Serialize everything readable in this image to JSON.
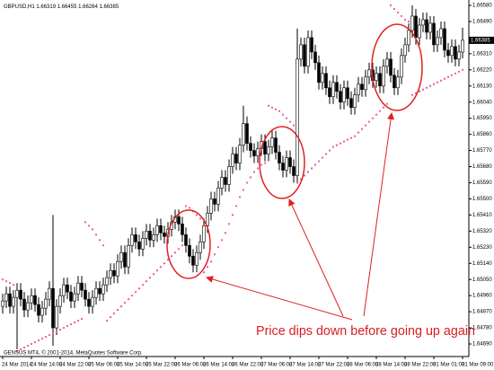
{
  "chart_data": {
    "type": "candlestick",
    "symbol": "GBPUSD,H1",
    "annotation": "Price dips down before going up again",
    "copyright": "GENSUS MT4, © 2001-2014, MetaQuotes Software Corp.",
    "up_color": "#ffffff",
    "down_color": "#000000",
    "sar_color": "#e8559a",
    "categories": [
      "24 Mar 2014",
      null,
      null,
      null,
      null,
      null,
      null,
      null,
      "24 Mar 14:00",
      null,
      null,
      null,
      null,
      null,
      null,
      null,
      "24 Mar 22:00",
      null,
      null,
      null,
      null,
      null,
      null,
      null,
      "25 Mar 06:00",
      null,
      null,
      null,
      null,
      null,
      null,
      null,
      "25 Mar 14:00",
      null,
      null,
      null,
      null,
      null,
      null,
      null,
      "25 Mar 22:00",
      null,
      null,
      null,
      null,
      null,
      null,
      null,
      "26 Mar 06:00",
      null,
      null,
      null,
      null,
      null,
      null,
      null,
      "26 Mar 14:00",
      null,
      null,
      null,
      null,
      null,
      null,
      null,
      "26 Mar 22:00",
      null,
      null,
      null,
      null,
      null,
      null,
      null,
      "27 Mar 06:00",
      null,
      null,
      null,
      null,
      null,
      null,
      null,
      "27 Mar 14:00",
      null,
      null,
      null,
      null,
      null,
      null,
      null,
      "27 Mar 22:00",
      null,
      null,
      null,
      null,
      null,
      null,
      null,
      "28 Mar 06:00",
      null,
      null,
      null,
      null,
      null,
      null,
      null,
      "28 Mar 14:00",
      null,
      null,
      null,
      null,
      null,
      null,
      null,
      "28 Mar 22:00",
      null,
      null,
      null,
      null,
      null,
      null,
      null,
      "31 Mar 01:00",
      null,
      null,
      null,
      null,
      null,
      null,
      null,
      "31 Mar 09:00"
    ],
    "open": [
      1.649,
      1.6493,
      1.6497,
      1.649,
      1.6495,
      1.6499,
      1.6494,
      1.6488,
      1.6492,
      1.6496,
      1.6491,
      1.6485,
      1.6489,
      1.6494,
      1.65,
      1.6478,
      1.649,
      1.6496,
      1.6502,
      1.6498,
      1.6493,
      1.6497,
      1.6503,
      1.6499,
      1.6494,
      1.649,
      1.6495,
      1.65,
      1.6497,
      1.6502,
      1.6506,
      1.651,
      1.6507,
      1.6515,
      1.652,
      1.6512,
      1.6524,
      1.653,
      1.6526,
      1.6522,
      1.6528,
      1.6532,
      1.6527,
      1.653,
      1.6535,
      1.6531,
      1.6529,
      1.6533,
      1.6537,
      1.654,
      1.6536,
      1.653,
      1.6524,
      1.6518,
      1.6513,
      1.652,
      1.6526,
      1.6535,
      1.6542,
      1.655,
      1.6547,
      1.6556,
      1.6562,
      1.6558,
      1.6568,
      1.6575,
      1.657,
      1.658,
      1.6592,
      1.6581,
      1.6577,
      1.6574,
      1.6578,
      1.6582,
      1.6575,
      1.6579,
      1.6584,
      1.6576,
      1.657,
      1.6566,
      1.6573,
      1.6568,
      1.6563,
      1.6628,
      1.6636,
      1.6624,
      1.664,
      1.6632,
      1.6626,
      1.6615,
      1.662,
      1.6612,
      1.6607,
      1.6615,
      1.661,
      1.6604,
      1.6612,
      1.6606,
      1.6601,
      1.6608,
      1.6614,
      1.6611,
      1.6618,
      1.6622,
      1.6616,
      1.662,
      1.6613,
      1.6624,
      1.6628,
      1.6619,
      1.6612,
      1.6618,
      1.663,
      1.6636,
      1.6644,
      1.6652,
      1.664,
      1.6647,
      1.665,
      1.6643,
      1.6648,
      1.6636,
      1.664,
      1.6645,
      1.6633,
      1.663,
      1.6635,
      1.6628,
      1.66319
    ],
    "high": [
      1.6497,
      1.6501,
      1.6501,
      1.6499,
      1.6503,
      1.6503,
      1.6498,
      1.6496,
      1.65,
      1.65,
      1.6495,
      1.6493,
      1.6498,
      1.6504,
      1.6541,
      1.6494,
      1.65,
      1.6506,
      1.6506,
      1.6502,
      1.6501,
      1.6507,
      1.6507,
      1.6503,
      1.6498,
      1.6499,
      1.6504,
      1.6504,
      1.6506,
      1.651,
      1.6514,
      1.6514,
      1.6519,
      1.6524,
      1.6524,
      1.6528,
      1.6534,
      1.6534,
      1.653,
      1.6532,
      1.6536,
      1.6536,
      1.6534,
      1.6539,
      1.6539,
      1.6535,
      1.6537,
      1.6541,
      1.6544,
      1.6544,
      1.654,
      1.6534,
      1.6528,
      1.6522,
      1.6524,
      1.653,
      1.6539,
      1.6546,
      1.6554,
      1.6554,
      1.656,
      1.6566,
      1.6566,
      1.6572,
      1.6579,
      1.6579,
      1.6584,
      1.6602,
      1.6596,
      1.6585,
      1.6581,
      1.6582,
      1.6586,
      1.6586,
      1.6583,
      1.6588,
      1.6588,
      1.658,
      1.6574,
      1.6577,
      1.6577,
      1.6572,
      1.6645,
      1.664,
      1.664,
      1.6644,
      1.6644,
      1.6636,
      1.663,
      1.6624,
      1.6624,
      1.6616,
      1.6619,
      1.6619,
      1.6614,
      1.6616,
      1.6616,
      1.661,
      1.6612,
      1.6618,
      1.6618,
      1.6622,
      1.6626,
      1.6626,
      1.6624,
      1.6624,
      1.6628,
      1.6632,
      1.6632,
      1.6623,
      1.6622,
      1.6634,
      1.664,
      1.6648,
      1.6658,
      1.6656,
      1.6651,
      1.6654,
      1.6654,
      1.6652,
      1.6652,
      1.6644,
      1.6649,
      1.6649,
      1.6637,
      1.6639,
      1.6639,
      1.6636,
      1.66455
    ],
    "low": [
      1.6486,
      1.6489,
      1.6486,
      1.6486,
      1.6466,
      1.649,
      1.6484,
      1.6484,
      1.6488,
      1.6487,
      1.6481,
      1.6481,
      1.6485,
      1.649,
      1.6468,
      1.6474,
      1.6486,
      1.6492,
      1.6494,
      1.6489,
      1.6489,
      1.6493,
      1.6495,
      1.649,
      1.6486,
      1.6486,
      1.6491,
      1.6493,
      1.6493,
      1.6498,
      1.6502,
      1.6503,
      1.6503,
      1.6511,
      1.6508,
      1.6508,
      1.652,
      1.6522,
      1.6518,
      1.6518,
      1.6524,
      1.6523,
      1.6523,
      1.6526,
      1.6527,
      1.6525,
      1.6525,
      1.6529,
      1.6533,
      1.6532,
      1.6526,
      1.652,
      1.6514,
      1.6509,
      1.6509,
      1.6516,
      1.6522,
      1.6531,
      1.6538,
      1.6543,
      1.6543,
      1.6552,
      1.6554,
      1.6554,
      1.6564,
      1.6566,
      1.6566,
      1.6576,
      1.6577,
      1.6573,
      1.657,
      1.657,
      1.6574,
      1.6571,
      1.6571,
      1.6575,
      1.6572,
      1.6566,
      1.6562,
      1.6562,
      1.6564,
      1.6559,
      1.6559,
      1.6624,
      1.662,
      1.662,
      1.6628,
      1.6622,
      1.6611,
      1.6611,
      1.6608,
      1.6603,
      1.6603,
      1.6606,
      1.66,
      1.66,
      1.6602,
      1.6597,
      1.6597,
      1.6604,
      1.6607,
      1.6607,
      1.6614,
      1.6612,
      1.6612,
      1.6609,
      1.6609,
      1.662,
      1.6615,
      1.6608,
      1.6608,
      1.6614,
      1.6626,
      1.6632,
      1.664,
      1.6636,
      1.6636,
      1.6643,
      1.6639,
      1.6639,
      1.6632,
      1.6632,
      1.6636,
      1.6629,
      1.6626,
      1.6626,
      1.6624,
      1.6624,
      1.66284
    ],
    "close": [
      1.6493,
      1.6497,
      1.649,
      1.6495,
      1.6499,
      1.6494,
      1.6488,
      1.6492,
      1.6496,
      1.6491,
      1.6485,
      1.6489,
      1.6494,
      1.65,
      1.6478,
      1.649,
      1.6496,
      1.6502,
      1.6498,
      1.6493,
      1.6497,
      1.6503,
      1.6499,
      1.6494,
      1.649,
      1.6495,
      1.65,
      1.6497,
      1.6502,
      1.6506,
      1.651,
      1.6507,
      1.6515,
      1.652,
      1.6512,
      1.6524,
      1.653,
      1.6526,
      1.6522,
      1.6528,
      1.6532,
      1.6527,
      1.653,
      1.6535,
      1.6531,
      1.6529,
      1.6533,
      1.6537,
      1.654,
      1.6536,
      1.653,
      1.6524,
      1.6518,
      1.6513,
      1.652,
      1.6526,
      1.6535,
      1.6542,
      1.655,
      1.6547,
      1.6556,
      1.6562,
      1.6558,
      1.6568,
      1.6575,
      1.657,
      1.658,
      1.6592,
      1.6581,
      1.6577,
      1.6574,
      1.6578,
      1.6582,
      1.6575,
      1.6579,
      1.6584,
      1.6576,
      1.657,
      1.6566,
      1.6573,
      1.6568,
      1.6563,
      1.6628,
      1.6636,
      1.6624,
      1.664,
      1.6632,
      1.6626,
      1.6615,
      1.662,
      1.6612,
      1.6607,
      1.6615,
      1.661,
      1.6604,
      1.6612,
      1.6606,
      1.6601,
      1.6608,
      1.6614,
      1.6611,
      1.6618,
      1.6622,
      1.6616,
      1.662,
      1.6613,
      1.6624,
      1.6628,
      1.6619,
      1.6612,
      1.6618,
      1.663,
      1.6636,
      1.6644,
      1.6652,
      1.664,
      1.6647,
      1.665,
      1.6643,
      1.6648,
      1.6636,
      1.664,
      1.6645,
      1.6633,
      1.663,
      1.6635,
      1.6628,
      1.6632,
      1.66385
    ],
    "sar": [
      1.6505,
      1.6504,
      1.6503,
      1.6502,
      1.6465,
      1.6466,
      1.6467,
      1.6468,
      1.6469,
      1.647,
      1.6471,
      1.6472,
      1.6473,
      1.6474,
      1.6475,
      1.6476,
      1.6477,
      1.6478,
      1.6479,
      1.648,
      1.6481,
      1.6482,
      1.6483,
      1.6537,
      1.6535,
      1.6533,
      1.653,
      1.6527,
      1.6524,
      1.6482,
      1.6484,
      1.6486,
      1.6488,
      1.649,
      1.6492,
      1.6494,
      1.6496,
      1.6498,
      1.65,
      1.6502,
      1.6504,
      1.6506,
      1.6508,
      1.651,
      1.6512,
      1.6514,
      1.6516,
      1.6518,
      1.652,
      1.6522,
      1.6524,
      1.6546,
      1.6545,
      1.6543,
      1.6541,
      1.6539,
      1.6509,
      1.6512,
      1.6515,
      1.6519,
      1.6523,
      1.6527,
      1.6531,
      1.6536,
      1.6541,
      1.6546,
      1.6551,
      1.6555,
      1.6559,
      1.6562,
      1.6565,
      1.6567,
      1.6569,
      1.657,
      1.6602,
      1.6601,
      1.66,
      1.6599,
      1.6597,
      1.6595,
      1.6593,
      1.6591,
      1.6559,
      1.6561,
      1.6563,
      1.6565,
      1.6567,
      1.6569,
      1.6571,
      1.6573,
      1.6575,
      1.6577,
      1.6579,
      1.658,
      1.6581,
      1.6582,
      1.6583,
      1.6584,
      1.6585,
      1.6587,
      1.6589,
      1.6591,
      1.6593,
      1.6595,
      1.6597,
      1.6599,
      1.6601,
      1.6603,
      1.6658,
      1.6656,
      1.6654,
      1.6652,
      1.665,
      1.6649,
      1.6608,
      1.6609,
      1.661,
      1.6611,
      1.6612,
      1.6613,
      1.6614,
      1.6615,
      1.6616,
      1.6617,
      1.6618,
      1.6619,
      1.662,
      1.6621,
      1.6622
    ],
    "ylim": [
      1.6464,
      1.666
    ],
    "yticks": [
      {
        "value": 1.6658,
        "label": "1.66580"
      },
      {
        "value": 1.6649,
        "label": "1.66490"
      },
      {
        "value": 1.6631,
        "label": "1.66310"
      },
      {
        "value": 1.6622,
        "label": "1.66220"
      },
      {
        "value": 1.6613,
        "label": "1.66130"
      },
      {
        "value": 1.6604,
        "label": "1.66040"
      },
      {
        "value": 1.6595,
        "label": "1.65950"
      },
      {
        "value": 1.6586,
        "label": "1.65860"
      },
      {
        "value": 1.6577,
        "label": "1.65770"
      },
      {
        "value": 1.6568,
        "label": "1.65680"
      },
      {
        "value": 1.6559,
        "label": "1.65590"
      },
      {
        "value": 1.655,
        "label": "1.65500"
      },
      {
        "value": 1.6541,
        "label": "1.65410"
      },
      {
        "value": 1.6532,
        "label": "1.65320"
      },
      {
        "value": 1.6523,
        "label": "1.65230"
      },
      {
        "value": 1.6514,
        "label": "1.65140"
      },
      {
        "value": 1.6505,
        "label": "1.65050"
      },
      {
        "value": 1.6496,
        "label": "1.64960"
      },
      {
        "value": 1.6487,
        "label": "1.64870"
      },
      {
        "value": 1.6478,
        "label": "1.64780"
      },
      {
        "value": 1.6469,
        "label": "1.64690"
      }
    ]
  }
}
